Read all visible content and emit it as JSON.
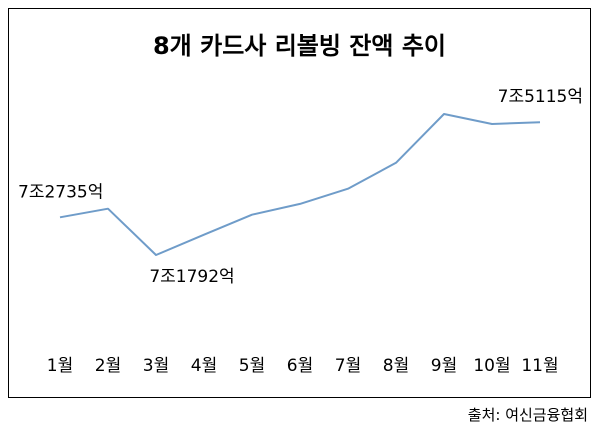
{
  "chart_data": {
    "type": "line",
    "title": "8개 카드사 리볼빙 잔액 추이",
    "categories": [
      "1월",
      "2월",
      "3월",
      "4월",
      "5월",
      "6월",
      "7월",
      "8월",
      "9월",
      "10월",
      "11월"
    ],
    "series": [
      {
        "values_eok": [
          72735,
          72950,
          71792,
          72300,
          72800,
          73070,
          73450,
          74100,
          75320,
          75070,
          75115
        ]
      }
    ],
    "annotations": [
      {
        "index": 0,
        "text": "7조2735억"
      },
      {
        "index": 2,
        "text": "7조1792억"
      },
      {
        "index": 10,
        "text": "7조5115억"
      }
    ],
    "line_color": "#6f9cc9",
    "grid": false,
    "legend": "none"
  },
  "source": "출처: 여신금융협회"
}
